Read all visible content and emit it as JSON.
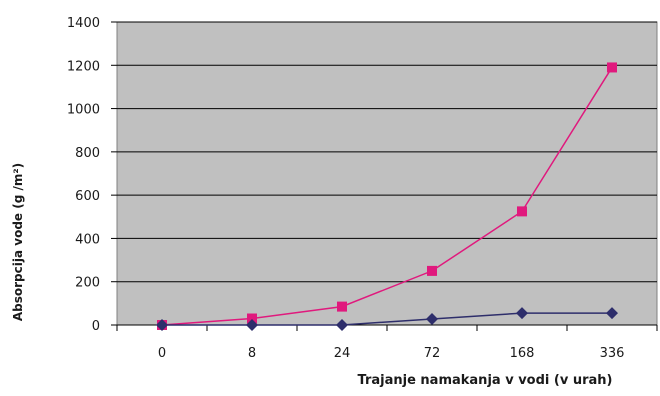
{
  "chart_data": {
    "type": "line",
    "title": "",
    "xlabel": "Trajanje namakanja v vodi (v urah)",
    "ylabel": "Absorpcija vode (g /m²)",
    "categories": [
      "0",
      "8",
      "24",
      "72",
      "168",
      "336"
    ],
    "ylim": [
      0,
      1400
    ],
    "yticks": [
      "0",
      "200",
      "400",
      "600",
      "800",
      "1000",
      "1200",
      "1400"
    ],
    "grid": true,
    "legend": "none",
    "series": [
      {
        "name": "",
        "color": "#e0197d",
        "marker": "square",
        "values": [
          0,
          30,
          85,
          250,
          525,
          1190
        ]
      },
      {
        "name": "",
        "color": "#2e2e6b",
        "marker": "diamond",
        "values": [
          0,
          0,
          0,
          28,
          55,
          55
        ]
      }
    ],
    "plot_background": "#c0c0c0"
  }
}
